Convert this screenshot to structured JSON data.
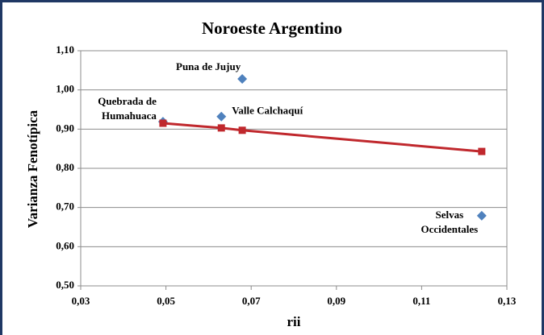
{
  "chart_data": {
    "type": "scatter",
    "title": "Noroeste Argentino",
    "x_label": "rii",
    "y_label": "Varianza Fenotípica",
    "xlim": [
      0.03,
      0.13
    ],
    "ylim": [
      0.5,
      1.1
    ],
    "xticks": [
      {
        "value": 0.03,
        "label": "0,03"
      },
      {
        "value": 0.05,
        "label": "0,05"
      },
      {
        "value": 0.07,
        "label": "0,07"
      },
      {
        "value": 0.09,
        "label": "0,09"
      },
      {
        "value": 0.11,
        "label": "0,11"
      },
      {
        "value": 0.13,
        "label": "0,13"
      }
    ],
    "yticks": [
      {
        "value": 0.5,
        "label": "0,50"
      },
      {
        "value": 0.6,
        "label": "0,60"
      },
      {
        "value": 0.7,
        "label": "0,70"
      },
      {
        "value": 0.8,
        "label": "0,80"
      },
      {
        "value": 0.9,
        "label": "0,90"
      },
      {
        "value": 1.0,
        "label": "1,00"
      },
      {
        "value": 1.1,
        "label": "1,10"
      }
    ],
    "grid": "y",
    "series": [
      {
        "color": "#4f81bd",
        "marker": "diamond",
        "x": [
          0.0493,
          0.063,
          0.0679,
          0.1241
        ],
        "values": [
          0.919,
          0.932,
          1.028,
          0.679
        ],
        "labels": [
          [
            "Quebrada de",
            "Humahuaca"
          ],
          [
            "Valle Calchaquí"
          ],
          [
            "Puna de Jujuy"
          ],
          [
            "Selvas",
            "Occidentales"
          ]
        ]
      },
      {
        "color": "#c0282d",
        "marker": "square",
        "line": true,
        "x": [
          0.0493,
          0.063,
          0.0679,
          0.1241
        ],
        "values": [
          0.915,
          0.903,
          0.897,
          0.843
        ]
      }
    ]
  }
}
